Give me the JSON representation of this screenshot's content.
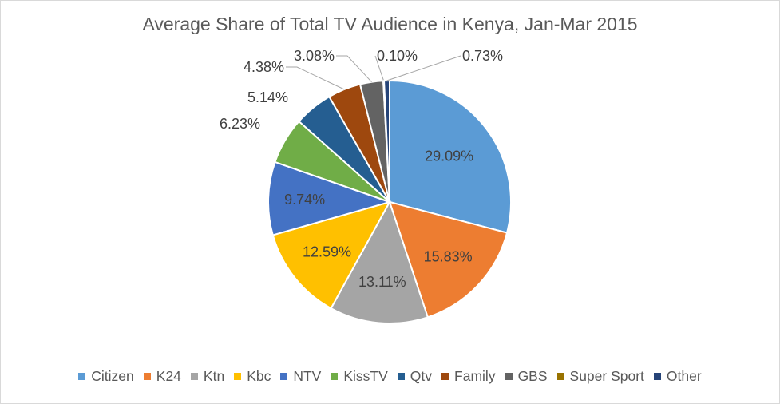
{
  "chart_data": {
    "type": "pie",
    "title": "Average Share of Total TV Audience in Kenya, Jan-Mar 2015",
    "categories": [
      "Citizen",
      "K24",
      "Ktn",
      "Kbc",
      "NTV",
      "KissTV",
      "Qtv",
      "Family",
      "GBS",
      "Super Sport",
      "Other"
    ],
    "values": [
      29.09,
      15.83,
      13.11,
      12.59,
      9.74,
      6.23,
      5.14,
      4.38,
      3.08,
      0.1,
      0.73
    ],
    "labels": [
      "29.09%",
      "15.83%",
      "13.11%",
      "12.59%",
      "9.74%",
      "6.23%",
      "5.14%",
      "4.38%",
      "3.08%",
      "0.10%",
      "0.73%"
    ],
    "colors": [
      "#5b9bd5",
      "#ed7d31",
      "#a5a5a5",
      "#ffc000",
      "#4472c4",
      "#70ad47",
      "#255e91",
      "#9e480e",
      "#636363",
      "#997300",
      "#264478"
    ],
    "legend": "bottom",
    "start_angle_deg": 0,
    "direction": "clockwise"
  }
}
